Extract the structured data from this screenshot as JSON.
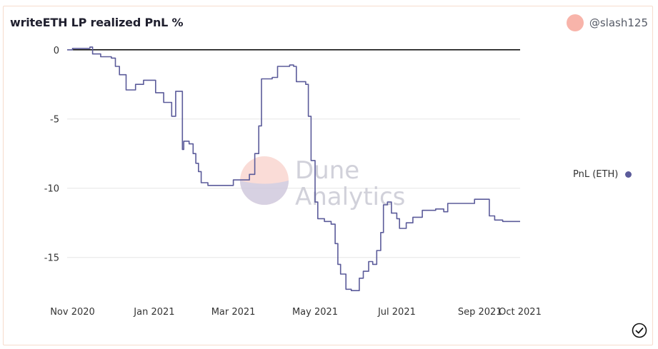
{
  "header": {
    "title": "writeETH LP realized PnL %",
    "author": "@slash125"
  },
  "watermark": {
    "line1": "Dune",
    "line2": "Analytics"
  },
  "colors": {
    "line": "#5b5b9a",
    "grid": "#e6e6e6",
    "zero": "#000000"
  },
  "chart_data": {
    "type": "line",
    "title": "writeETH LP realized PnL %",
    "xlabel": "",
    "ylabel": "",
    "legend_position": "right",
    "grid": true,
    "ylim": [
      -17.8,
      0.4
    ],
    "yticks": [
      0,
      -5,
      -10,
      -15
    ],
    "xlim": [
      "2020-10-28",
      "2021-10-01"
    ],
    "xticks": [
      {
        "label": "Nov 2020",
        "date": "2020-11-01"
      },
      {
        "label": "Jan 2021",
        "date": "2021-01-01"
      },
      {
        "label": "Mar 2021",
        "date": "2021-03-01"
      },
      {
        "label": "May 2021",
        "date": "2021-05-01"
      },
      {
        "label": "Jul 2021",
        "date": "2021-07-01"
      },
      {
        "label": "Sep 2021",
        "date": "2021-09-01"
      },
      {
        "label": "Oct 2021",
        "date": "2021-10-01"
      }
    ],
    "series": [
      {
        "name": "PnL (ETH)",
        "points": [
          [
            "2020-10-28",
            0.0
          ],
          [
            "2020-11-01",
            0.1
          ],
          [
            "2020-11-10",
            0.1
          ],
          [
            "2020-11-14",
            0.2
          ],
          [
            "2020-11-16",
            -0.3
          ],
          [
            "2020-11-22",
            -0.5
          ],
          [
            "2020-11-30",
            -0.6
          ],
          [
            "2020-12-03",
            -1.2
          ],
          [
            "2020-12-06",
            -1.8
          ],
          [
            "2020-12-11",
            -2.9
          ],
          [
            "2020-12-18",
            -2.5
          ],
          [
            "2020-12-24",
            -2.2
          ],
          [
            "2020-12-30",
            -2.2
          ],
          [
            "2021-01-02",
            -3.1
          ],
          [
            "2021-01-08",
            -3.8
          ],
          [
            "2021-01-14",
            -4.8
          ],
          [
            "2021-01-17",
            -3.0
          ],
          [
            "2021-01-21",
            -3.0
          ],
          [
            "2021-01-22",
            -7.2
          ],
          [
            "2021-01-23",
            -6.6
          ],
          [
            "2021-01-27",
            -6.8
          ],
          [
            "2021-01-30",
            -7.5
          ],
          [
            "2021-02-01",
            -8.2
          ],
          [
            "2021-02-03",
            -8.8
          ],
          [
            "2021-02-05",
            -9.6
          ],
          [
            "2021-02-10",
            -9.8
          ],
          [
            "2021-02-28",
            -9.8
          ],
          [
            "2021-03-01",
            -9.4
          ],
          [
            "2021-03-09",
            -9.4
          ],
          [
            "2021-03-13",
            -9.0
          ],
          [
            "2021-03-17",
            -7.5
          ],
          [
            "2021-03-20",
            -5.5
          ],
          [
            "2021-03-22",
            -2.1
          ],
          [
            "2021-03-30",
            -2.0
          ],
          [
            "2021-04-01",
            -2.0
          ],
          [
            "2021-04-03",
            -1.2
          ],
          [
            "2021-04-12",
            -1.1
          ],
          [
            "2021-04-15",
            -1.2
          ],
          [
            "2021-04-17",
            -2.3
          ],
          [
            "2021-04-24",
            -2.5
          ],
          [
            "2021-04-26",
            -4.8
          ],
          [
            "2021-04-28",
            -8.0
          ],
          [
            "2021-05-01",
            -11.0
          ],
          [
            "2021-05-03",
            -12.2
          ],
          [
            "2021-05-08",
            -12.4
          ],
          [
            "2021-05-13",
            -12.6
          ],
          [
            "2021-05-16",
            -14.0
          ],
          [
            "2021-05-18",
            -15.5
          ],
          [
            "2021-05-20",
            -16.2
          ],
          [
            "2021-05-24",
            -17.3
          ],
          [
            "2021-05-28",
            -17.4
          ],
          [
            "2021-06-03",
            -16.5
          ],
          [
            "2021-06-06",
            -16.0
          ],
          [
            "2021-06-10",
            -15.3
          ],
          [
            "2021-06-13",
            -15.5
          ],
          [
            "2021-06-16",
            -14.5
          ],
          [
            "2021-06-19",
            -13.2
          ],
          [
            "2021-06-21",
            -11.2
          ],
          [
            "2021-06-24",
            -11.0
          ],
          [
            "2021-06-27",
            -11.8
          ],
          [
            "2021-07-01",
            -12.2
          ],
          [
            "2021-07-03",
            -12.9
          ],
          [
            "2021-07-08",
            -12.5
          ],
          [
            "2021-07-13",
            -12.1
          ],
          [
            "2021-07-20",
            -11.6
          ],
          [
            "2021-07-30",
            -11.5
          ],
          [
            "2021-08-05",
            -11.7
          ],
          [
            "2021-08-08",
            -11.1
          ],
          [
            "2021-08-20",
            -11.1
          ],
          [
            "2021-08-28",
            -10.8
          ],
          [
            "2021-09-05",
            -10.8
          ],
          [
            "2021-09-08",
            -12.0
          ],
          [
            "2021-09-12",
            -12.3
          ],
          [
            "2021-09-18",
            -12.4
          ],
          [
            "2021-10-01",
            -12.4
          ]
        ]
      }
    ]
  },
  "status": {
    "check_icon": "check-circle-icon"
  }
}
